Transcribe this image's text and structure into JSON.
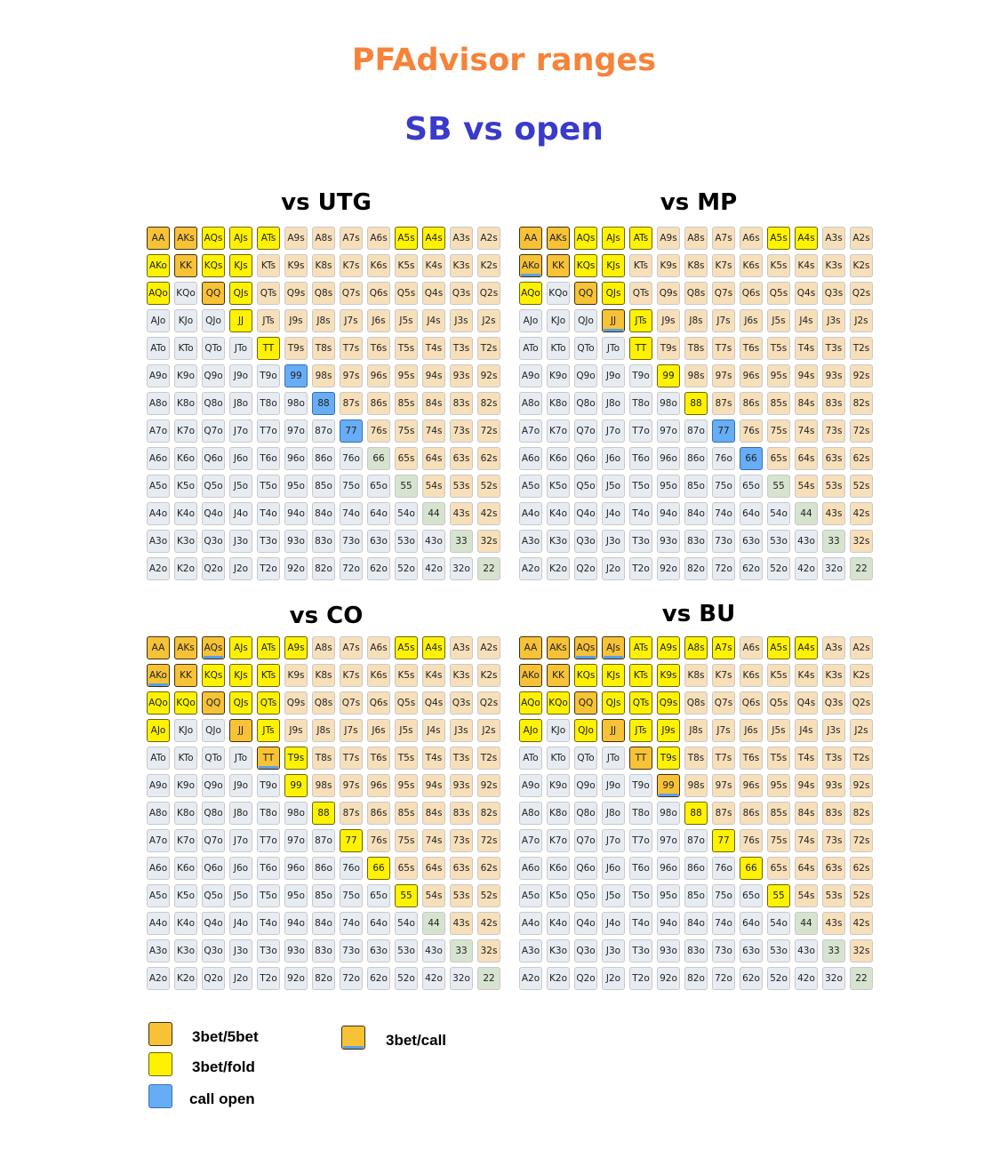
{
  "title": "PFAdvisor ranges",
  "subtitle": "SB vs open",
  "colors": {
    "3bet_5bet": "#f7c236",
    "3bet_fold": "#fff200",
    "call_open": "#66adf5",
    "3bet_call_stripe": "#5ba0e3",
    "suited_bg": "#f7dfba",
    "offsuit_bg": "#e7ecf2",
    "pair_bg": "#d6e3cf",
    "title_color": "#f5833a",
    "subtitle_color": "#3a3acb"
  },
  "ranks": [
    "A",
    "K",
    "Q",
    "J",
    "T",
    "9",
    "8",
    "7",
    "6",
    "5",
    "4",
    "3",
    "2"
  ],
  "charts": [
    {
      "title": "vs UTG",
      "actions": {
        "AA": "f",
        "AKs": "f",
        "AQs": "y",
        "AJs": "y",
        "ATs": "y",
        "A5s": "y",
        "A4s": "y",
        "AKo": "y",
        "KK": "f",
        "KQs": "y",
        "KJs": "y",
        "AQo": "y",
        "QQ": "f",
        "QJs": "y",
        "JJ": "y",
        "TT": "y",
        "99": "c",
        "88": "c",
        "77": "c"
      }
    },
    {
      "title": "vs MP",
      "actions": {
        "AA": "f",
        "AKs": "f",
        "AQs": "y",
        "AJs": "y",
        "ATs": "y",
        "A5s": "y",
        "A4s": "y",
        "AKo": "k",
        "KK": "f",
        "KQs": "y",
        "KJs": "y",
        "AQo": "y",
        "QQ": "f",
        "QJs": "y",
        "JJ": "k",
        "JTs": "y",
        "TT": "y",
        "99": "y",
        "88": "y",
        "77": "c",
        "66": "c"
      }
    },
    {
      "title": "vs CO",
      "actions": {
        "AA": "f",
        "AKs": "f",
        "AQs": "k",
        "AJs": "y",
        "ATs": "y",
        "A9s": "y",
        "A5s": "y",
        "A4s": "y",
        "AKo": "k",
        "KK": "f",
        "KQs": "y",
        "KJs": "y",
        "KTs": "y",
        "AQo": "y",
        "KQo": "y",
        "QQ": "f",
        "QJs": "y",
        "QTs": "y",
        "AJo": "y",
        "JJ": "f",
        "JTs": "y",
        "TT": "k",
        "T9s": "y",
        "99": "y",
        "88": "y",
        "77": "y",
        "66": "y",
        "55": "y"
      }
    },
    {
      "title": "vs BU",
      "actions": {
        "AA": "f",
        "AKs": "f",
        "AQs": "k",
        "AJs": "k",
        "ATs": "y",
        "A9s": "y",
        "A8s": "y",
        "A7s": "y",
        "A5s": "y",
        "A4s": "y",
        "AKo": "f",
        "KK": "f",
        "KQs": "y",
        "KJs": "y",
        "KTs": "y",
        "K9s": "y",
        "AQo": "y",
        "KQo": "y",
        "QQ": "f",
        "QJs": "y",
        "QTs": "y",
        "Q9s": "y",
        "AJo": "y",
        "QJo": "y",
        "JJ": "f",
        "JTs": "y",
        "J9s": "y",
        "TT": "f",
        "T9s": "y",
        "99": "k",
        "88": "y",
        "77": "y",
        "66": "y",
        "55": "y"
      }
    }
  ],
  "legend": {
    "3bet_5bet": "3bet/5bet",
    "3bet_fold": "3bet/fold",
    "call_open": "call open",
    "3bet_call": "3bet/call"
  }
}
